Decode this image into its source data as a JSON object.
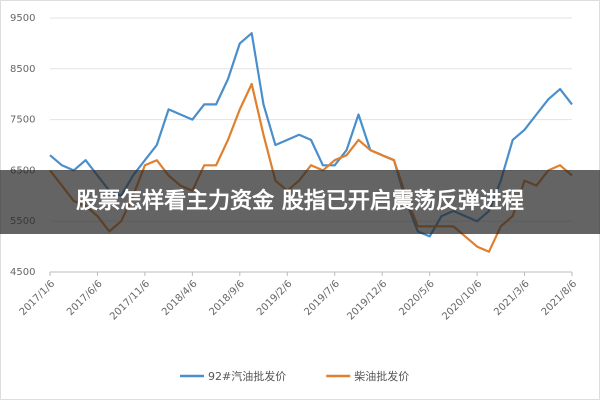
{
  "chart_data": {
    "type": "line",
    "title": "股票怎样看主力资金 股指已开启震荡反弹进程",
    "categories": [
      "2017/1/6",
      null,
      null,
      null,
      "2017/6/6",
      null,
      null,
      null,
      "2017/11/6",
      null,
      null,
      null,
      "2018/4/6",
      null,
      null,
      null,
      "2018/9/6",
      null,
      null,
      null,
      "2019/2/6",
      null,
      null,
      null,
      "2019/7/6",
      null,
      null,
      null,
      "2019/12/6",
      null,
      null,
      null,
      "2020/5/6",
      null,
      null,
      null,
      "2020/10/6",
      null,
      null,
      null,
      "2021/3/6",
      null,
      null,
      null,
      "2021/8/6"
    ],
    "series": [
      {
        "name": "92#汽油批发价",
        "color": "#4a8fcb",
        "values": [
          6800,
          6600,
          6500,
          6700,
          6400,
          6100,
          6000,
          6400,
          6700,
          7000,
          7700,
          7600,
          7500,
          7800,
          7800,
          8300,
          9000,
          9200,
          7800,
          7000,
          7100,
          7200,
          7100,
          6600,
          6600,
          6900,
          7600,
          6900,
          6800,
          6700,
          5900,
          5300,
          5200,
          5600,
          5700,
          5600,
          5500,
          5700,
          6300,
          7100,
          7300,
          7600,
          7900,
          8100,
          7800
        ]
      },
      {
        "name": "柴油批发价",
        "color": "#e0802e",
        "values": [
          6500,
          6200,
          5900,
          5800,
          5600,
          5300,
          5500,
          6000,
          6600,
          6700,
          6400,
          6200,
          6100,
          6600,
          6600,
          7100,
          7700,
          8200,
          7200,
          6300,
          6100,
          6300,
          6600,
          6500,
          6700,
          6800,
          7100,
          6900,
          6800,
          6700,
          6000,
          5400,
          5400,
          5400,
          5400,
          5200,
          5000,
          4900,
          5400,
          5600,
          6300,
          6200,
          6500,
          6600,
          6400
        ]
      }
    ],
    "ylim": [
      4500,
      9500
    ],
    "yticks": [
      4500,
      5500,
      6500,
      7500,
      8500,
      9500
    ],
    "grid": true,
    "legend": "bottom"
  }
}
